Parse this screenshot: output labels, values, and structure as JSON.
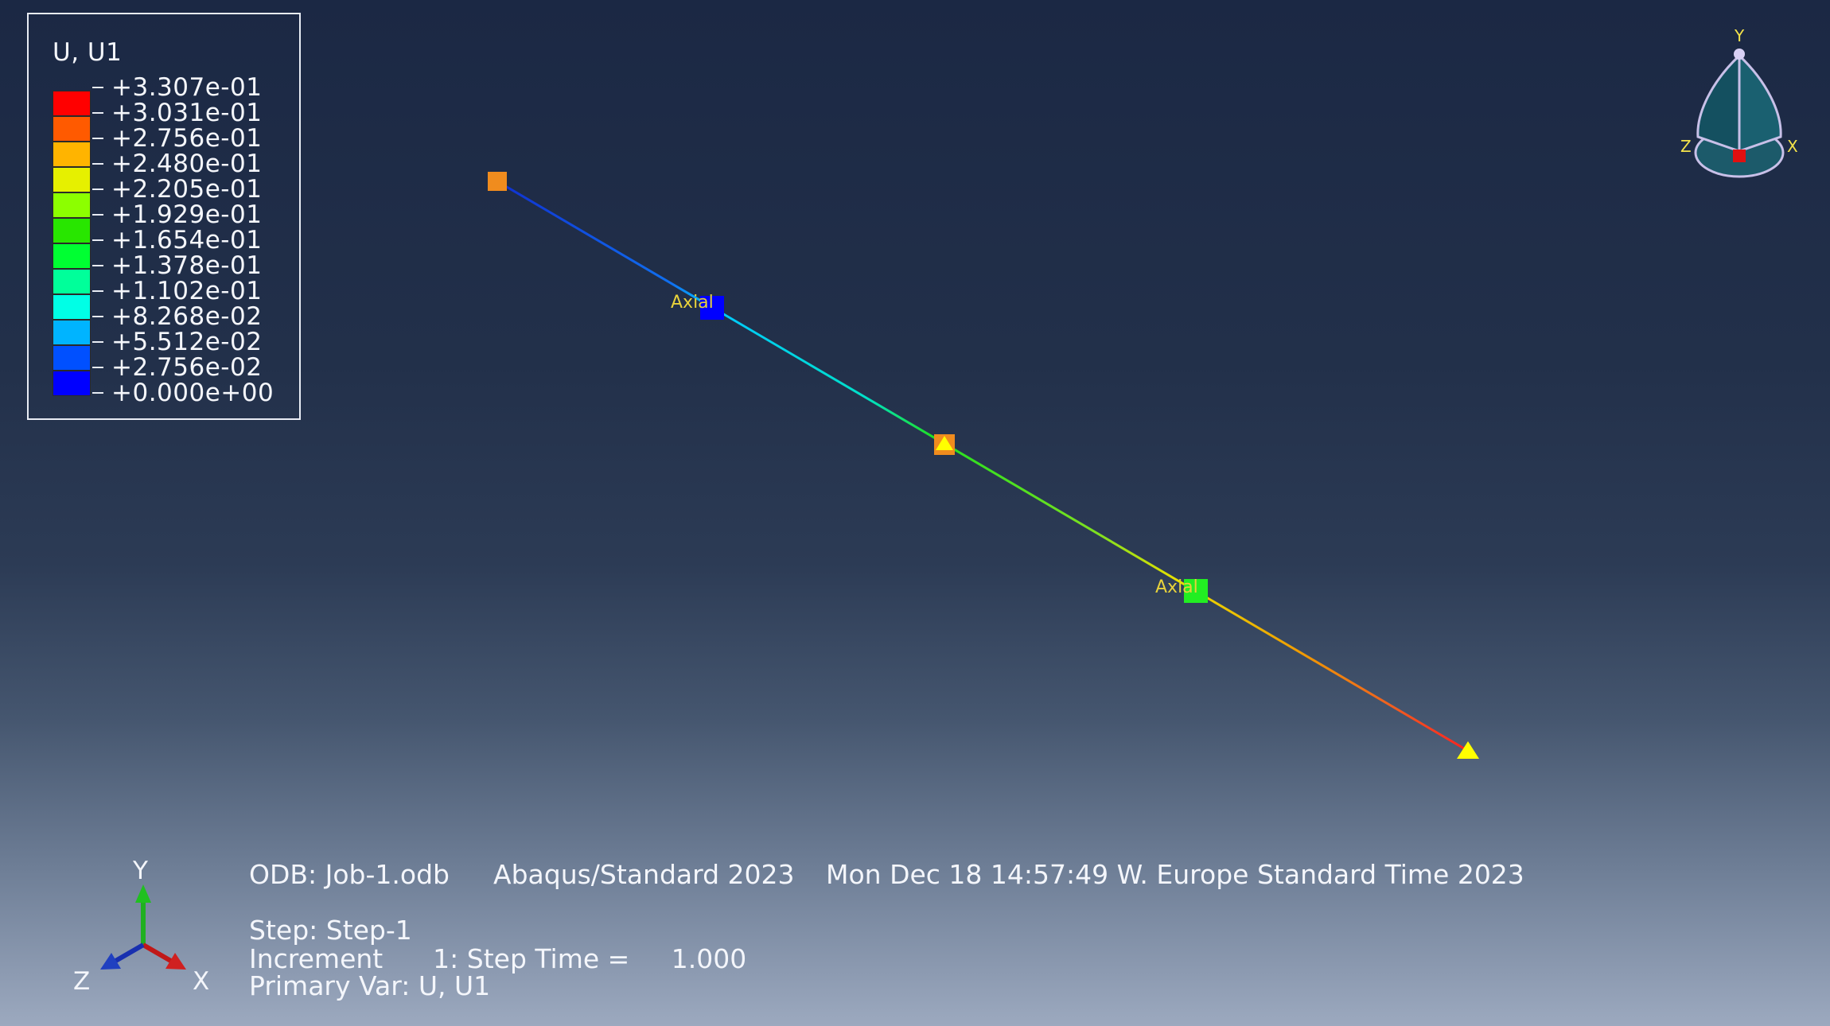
{
  "legend": {
    "title": "U, U1",
    "values": [
      "+3.307e-01",
      "+3.031e-01",
      "+2.756e-01",
      "+2.480e-01",
      "+2.205e-01",
      "+1.929e-01",
      "+1.654e-01",
      "+1.378e-01",
      "+1.102e-01",
      "+8.268e-02",
      "+5.512e-02",
      "+2.756e-02",
      "+0.000e+00"
    ],
    "colors": [
      "#ff0000",
      "#ff5a00",
      "#ffb400",
      "#e6f000",
      "#8cff00",
      "#28e600",
      "#00ff32",
      "#00ff9a",
      "#00ffe6",
      "#00b4ff",
      "#0050ff",
      "#0000ff"
    ]
  },
  "model": {
    "labels": [
      "Axial",
      "Axial"
    ],
    "element_colors": [
      "#1030d0",
      "#00c8ff",
      "#20e020",
      "#f0c000",
      "#ff2020"
    ],
    "marker_colors": {
      "orange": "#f08c1e",
      "blue": "#0000ff",
      "green": "#22ee22",
      "yellow": "#ffff00"
    }
  },
  "view_triad": {
    "y": "Y",
    "x": "X",
    "z": "Z"
  },
  "triad": {
    "y": "Y",
    "x": "X",
    "z": "Z"
  },
  "info": {
    "odb": "ODB: Job-1.odb",
    "solver": "Abaqus/Standard 2023",
    "timestamp": "Mon Dec 18 14:57:49 W. Europe Standard Time 2023",
    "step": "Step: Step-1",
    "increment": "Increment      1: Step Time =     1.000",
    "primary_var": "Primary Var: U, U1"
  }
}
